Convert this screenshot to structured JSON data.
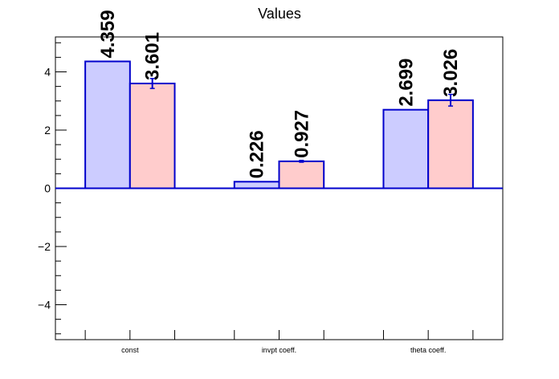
{
  "chart_data": {
    "type": "bar",
    "title": "Values",
    "categories": [
      "const",
      "invpt coeff.",
      "theta coeff."
    ],
    "series": [
      {
        "values": [
          4.359,
          0.226,
          2.699
        ],
        "errors": [
          0,
          0,
          0
        ],
        "fill": "#ccccff",
        "stroke": "#0000cc"
      },
      {
        "values": [
          3.601,
          0.927,
          3.026
        ],
        "errors": [
          0.17,
          0.03,
          0.2
        ],
        "fill": "#ffcccc",
        "stroke": "#0000cc"
      }
    ],
    "data_labels": [
      [
        "4.359",
        "0.226",
        "2.699"
      ],
      [
        "3.601",
        "0.927",
        "3.026"
      ]
    ],
    "ylim": [
      -5.2,
      5.2
    ],
    "yticks": [
      -4,
      -2,
      0,
      2,
      4
    ],
    "ytick_labels": [
      "−4",
      "−2",
      "0",
      "2",
      "4"
    ],
    "grid": false,
    "legend": "none"
  }
}
